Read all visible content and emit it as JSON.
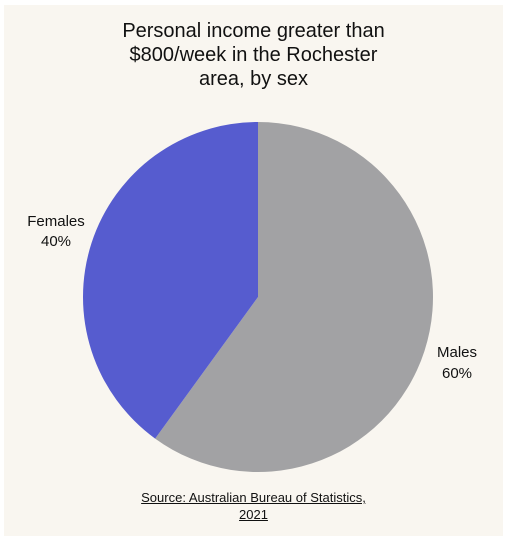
{
  "chart_data": {
    "type": "pie",
    "title_lines": [
      "Personal income greater than",
      "$800/week in the Rochester",
      "area, by sex"
    ],
    "slices": [
      {
        "label": "Males",
        "value": 60,
        "value_label": "60%",
        "color": "#a2a2a4"
      },
      {
        "label": "Females",
        "value": 40,
        "value_label": "40%",
        "color": "#565ccf"
      }
    ],
    "start": "12 o'clock",
    "direction": "clockwise",
    "legend": "none"
  },
  "source_lines": [
    "Source: Australian Bureau of Statistics,",
    "2021"
  ]
}
